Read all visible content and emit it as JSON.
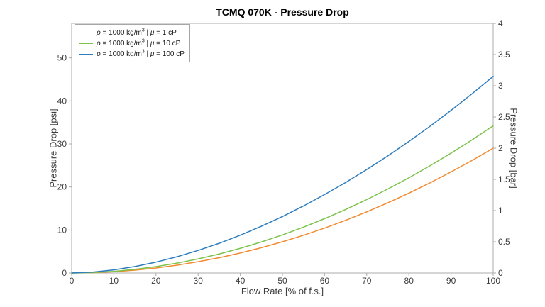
{
  "figure": {
    "background": "#ffffff",
    "axis_line_color": "#ababab",
    "tick_text_color": "#3c3c3c",
    "title_color": "#000000"
  },
  "chart_data": {
    "type": "line",
    "title": "TCMQ 070K - Pressure Drop",
    "xlabel": "Flow Rate [% of f.s.]",
    "ylabel_left": "Pressure Drop [psi]",
    "ylabel_right": "Pressure Drop [bar]",
    "xlim": [
      0,
      100
    ],
    "ylim_left_psi": [
      0,
      58.02
    ],
    "ylim_right_bar": [
      0,
      4
    ],
    "xticks": [
      0,
      10,
      20,
      30,
      40,
      50,
      60,
      70,
      80,
      90,
      100
    ],
    "yticks_left_psi": [
      0,
      10,
      20,
      30,
      40,
      50
    ],
    "yticks_right_bar": [
      0,
      0.5,
      1,
      1.5,
      2,
      2.5,
      3,
      3.5,
      4
    ],
    "grid": false,
    "legend_position": "top-left-inside",
    "x_percent": [
      0,
      5,
      10,
      15,
      20,
      25,
      30,
      35,
      40,
      45,
      50,
      55,
      60,
      65,
      70,
      75,
      80,
      85,
      90,
      95,
      100
    ],
    "series": [
      {
        "label": "ρ = 1000 kg/m³ | μ = 1 cP",
        "color": "#F28A30",
        "values_psi": [
          0,
          0.07,
          0.29,
          0.65,
          1.16,
          1.81,
          2.61,
          3.55,
          4.64,
          5.87,
          7.25,
          8.77,
          10.44,
          12.25,
          14.21,
          16.31,
          18.56,
          20.95,
          23.49,
          26.17,
          29.0
        ],
        "values_bar": [
          0,
          0.005,
          0.02,
          0.045,
          0.08,
          0.125,
          0.18,
          0.245,
          0.32,
          0.405,
          0.5,
          0.605,
          0.72,
          0.845,
          0.98,
          1.125,
          1.28,
          1.445,
          1.62,
          1.805,
          2.0
        ]
      },
      {
        "label": "ρ = 1000 kg/m³ | μ = 10 cP",
        "color": "#7CC24B",
        "values_psi": [
          0,
          0.1,
          0.38,
          0.85,
          1.48,
          2.29,
          3.27,
          4.41,
          5.73,
          7.21,
          8.85,
          10.66,
          12.63,
          14.76,
          17.06,
          19.51,
          22.13,
          24.91,
          27.85,
          30.94,
          34.2
        ],
        "values_bar": [
          0,
          0.007,
          0.026,
          0.058,
          0.102,
          0.158,
          0.225,
          0.304,
          0.395,
          0.497,
          0.61,
          0.735,
          0.871,
          1.018,
          1.176,
          1.345,
          1.526,
          1.718,
          1.92,
          2.133,
          2.358
        ]
      },
      {
        "label": "ρ = 1000 kg/m³ | μ = 100 cP",
        "color": "#2E7DBE",
        "values_psi": [
          0,
          0.21,
          0.72,
          1.5,
          2.52,
          3.77,
          5.24,
          6.9,
          8.78,
          10.86,
          13.12,
          15.58,
          18.23,
          21.04,
          24.05,
          27.22,
          30.57,
          34.09,
          37.79,
          41.67,
          45.7
        ],
        "values_bar": [
          0,
          0.014,
          0.05,
          0.104,
          0.174,
          0.26,
          0.361,
          0.476,
          0.605,
          0.749,
          0.905,
          1.074,
          1.257,
          1.451,
          1.658,
          1.877,
          2.108,
          2.351,
          2.606,
          2.873,
          3.151
        ]
      }
    ]
  }
}
